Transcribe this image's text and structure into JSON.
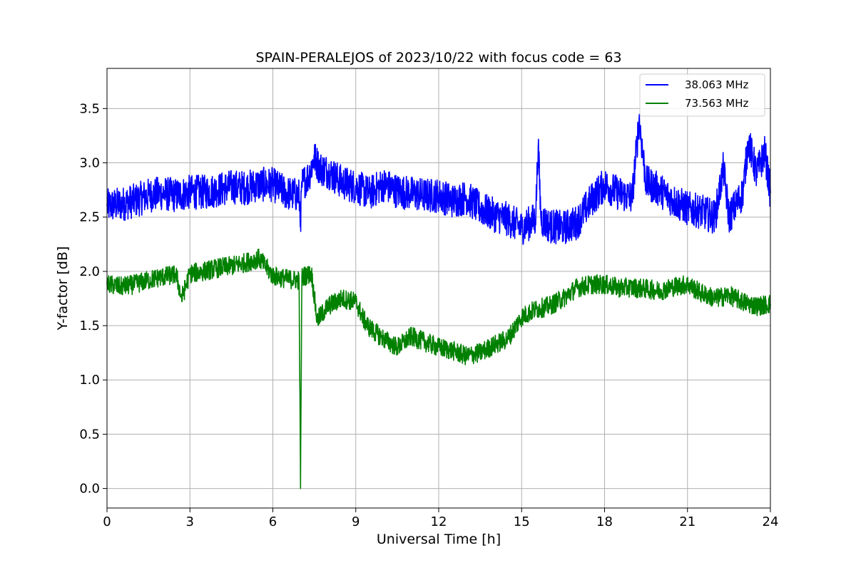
{
  "chart_data": {
    "type": "line",
    "title": "SPAIN-PERALEJOS of 2023/10/22 with focus code = 63",
    "xlabel": "Universal Time [h]",
    "ylabel": "Y-factor [dB]",
    "xlim": [
      0,
      24
    ],
    "ylim": [
      -0.18,
      3.87
    ],
    "x_ticks": [
      "0",
      "3",
      "6",
      "9",
      "12",
      "15",
      "18",
      "21",
      "24"
    ],
    "y_ticks": [
      "0.0",
      "0.5",
      "1.0",
      "1.5",
      "2.0",
      "2.5",
      "3.0",
      "3.5"
    ],
    "grid": true,
    "legend_position": "top-right",
    "series": [
      {
        "name": "38.063 MHz",
        "color": "#0000ff",
        "x": [
          0,
          0.5,
          1,
          1.5,
          2,
          2.5,
          3,
          3.5,
          4,
          4.5,
          5,
          5.5,
          6,
          6.5,
          6.95,
          7.0,
          7.05,
          7.3,
          7.5,
          7.7,
          8,
          8.5,
          9,
          9.5,
          10,
          10.5,
          11,
          11.5,
          12,
          12.5,
          13,
          13.5,
          14,
          14.5,
          15,
          15.5,
          15.6,
          15.7,
          16,
          16.5,
          17,
          17.5,
          18,
          18.5,
          19,
          19.25,
          19.5,
          20,
          20.5,
          21,
          21.5,
          22,
          22.3,
          22.5,
          23,
          23.2,
          23.5,
          23.8,
          24
        ],
        "values": [
          2.6,
          2.62,
          2.65,
          2.7,
          2.72,
          2.7,
          2.73,
          2.73,
          2.75,
          2.78,
          2.77,
          2.8,
          2.8,
          2.72,
          2.7,
          2.45,
          2.8,
          2.88,
          3.05,
          2.95,
          2.92,
          2.82,
          2.78,
          2.72,
          2.8,
          2.74,
          2.72,
          2.7,
          2.7,
          2.65,
          2.68,
          2.58,
          2.52,
          2.48,
          2.4,
          2.48,
          3.15,
          2.48,
          2.42,
          2.4,
          2.45,
          2.65,
          2.8,
          2.72,
          2.68,
          3.4,
          2.82,
          2.75,
          2.65,
          2.58,
          2.55,
          2.5,
          2.95,
          2.5,
          2.72,
          3.2,
          2.9,
          3.1,
          2.72
        ],
        "noise_amplitude": 0.16
      },
      {
        "name": "73.563 MHz",
        "color": "#008000",
        "x": [
          0,
          0.5,
          1,
          1.5,
          2,
          2.5,
          2.7,
          3,
          3.5,
          4,
          4.5,
          5,
          5.5,
          6,
          6.5,
          6.95,
          7.0,
          7.05,
          7.4,
          7.6,
          8,
          8.5,
          9,
          9.3,
          9.5,
          10,
          10.5,
          11,
          11.5,
          12,
          12.5,
          13,
          13.5,
          14,
          14.5,
          15,
          15.5,
          16,
          16.5,
          17,
          17.5,
          18,
          18.5,
          19,
          19.5,
          20,
          20.5,
          21,
          21.5,
          22,
          22.5,
          23,
          23.5,
          24
        ],
        "values": [
          1.88,
          1.86,
          1.88,
          1.92,
          1.95,
          1.97,
          1.75,
          1.98,
          2.0,
          2.03,
          2.05,
          2.08,
          2.12,
          1.96,
          1.93,
          1.92,
          0.0,
          1.95,
          1.98,
          1.55,
          1.68,
          1.75,
          1.72,
          1.55,
          1.48,
          1.38,
          1.3,
          1.4,
          1.35,
          1.3,
          1.27,
          1.22,
          1.25,
          1.32,
          1.38,
          1.58,
          1.65,
          1.68,
          1.75,
          1.85,
          1.88,
          1.88,
          1.85,
          1.85,
          1.84,
          1.82,
          1.86,
          1.88,
          1.8,
          1.75,
          1.78,
          1.72,
          1.68,
          1.7
        ],
        "noise_amplitude": 0.09
      }
    ]
  }
}
